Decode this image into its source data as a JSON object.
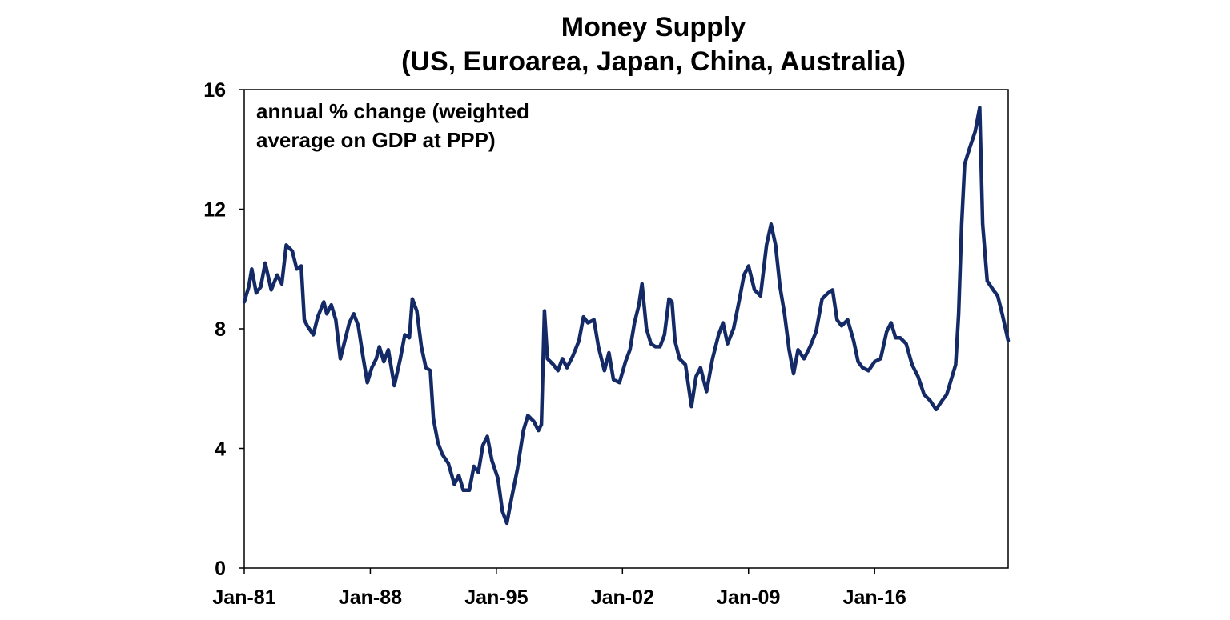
{
  "chart_data": {
    "type": "line",
    "title": "Money Supply",
    "subtitle": "(US, Euroarea, Japan, China, Australia)",
    "annotation": [
      "annual % change (weighted",
      "average on GDP at PPP)"
    ],
    "xlabel": "",
    "ylabel": "",
    "ylim": [
      0,
      16
    ],
    "yticks": [
      0,
      4,
      8,
      12,
      16
    ],
    "xlim": [
      "1981-01",
      "2023-06"
    ],
    "xticks": [
      {
        "date": "1981-01",
        "label": "Jan-81"
      },
      {
        "date": "1988-01",
        "label": "Jan-88"
      },
      {
        "date": "1995-01",
        "label": "Jan-95"
      },
      {
        "date": "2002-01",
        "label": "Jan-02"
      },
      {
        "date": "2009-01",
        "label": "Jan-09"
      },
      {
        "date": "2016-01",
        "label": "Jan-16"
      }
    ],
    "grid": false,
    "legend": "none",
    "series": [
      {
        "color": "#142a66",
        "points": [
          [
            "1981-01",
            8.9
          ],
          [
            "1981-04",
            9.4
          ],
          [
            "1981-06",
            10.0
          ],
          [
            "1981-09",
            9.2
          ],
          [
            "1981-12",
            9.4
          ],
          [
            "1982-03",
            10.2
          ],
          [
            "1982-07",
            9.3
          ],
          [
            "1982-11",
            9.8
          ],
          [
            "1983-02",
            9.5
          ],
          [
            "1983-05",
            10.8
          ],
          [
            "1983-09",
            10.6
          ],
          [
            "1983-12",
            10.0
          ],
          [
            "1984-03",
            10.1
          ],
          [
            "1984-05",
            8.3
          ],
          [
            "1984-07",
            8.1
          ],
          [
            "1984-11",
            7.8
          ],
          [
            "1985-02",
            8.4
          ],
          [
            "1985-06",
            8.9
          ],
          [
            "1985-08",
            8.5
          ],
          [
            "1985-11",
            8.8
          ],
          [
            "1986-02",
            8.3
          ],
          [
            "1986-05",
            7.0
          ],
          [
            "1986-08",
            7.6
          ],
          [
            "1986-11",
            8.2
          ],
          [
            "1987-02",
            8.5
          ],
          [
            "1987-05",
            8.1
          ],
          [
            "1987-08",
            7.1
          ],
          [
            "1987-11",
            6.2
          ],
          [
            "1988-02",
            6.7
          ],
          [
            "1988-05",
            7.0
          ],
          [
            "1988-07",
            7.4
          ],
          [
            "1988-10",
            6.9
          ],
          [
            "1989-01",
            7.3
          ],
          [
            "1989-05",
            6.1
          ],
          [
            "1989-09",
            7.0
          ],
          [
            "1989-12",
            7.8
          ],
          [
            "1990-03",
            7.7
          ],
          [
            "1990-05",
            9.0
          ],
          [
            "1990-08",
            8.6
          ],
          [
            "1990-11",
            7.4
          ],
          [
            "1991-02",
            6.7
          ],
          [
            "1991-05",
            6.6
          ],
          [
            "1991-07",
            5.0
          ],
          [
            "1991-10",
            4.2
          ],
          [
            "1992-01",
            3.8
          ],
          [
            "1992-05",
            3.5
          ],
          [
            "1992-09",
            2.8
          ],
          [
            "1992-12",
            3.1
          ],
          [
            "1993-03",
            2.6
          ],
          [
            "1993-07",
            2.6
          ],
          [
            "1993-10",
            3.4
          ],
          [
            "1994-01",
            3.2
          ],
          [
            "1994-04",
            4.1
          ],
          [
            "1994-07",
            4.4
          ],
          [
            "1994-10",
            3.6
          ],
          [
            "1995-02",
            3.0
          ],
          [
            "1995-05",
            1.9
          ],
          [
            "1995-08",
            1.5
          ],
          [
            "1995-11",
            2.3
          ],
          [
            "1996-03",
            3.3
          ],
          [
            "1996-07",
            4.6
          ],
          [
            "1996-10",
            5.1
          ],
          [
            "1997-02",
            4.9
          ],
          [
            "1997-05",
            4.6
          ],
          [
            "1997-07",
            4.8
          ],
          [
            "1997-09",
            8.6
          ],
          [
            "1997-11",
            7.0
          ],
          [
            "1998-03",
            6.8
          ],
          [
            "1998-06",
            6.6
          ],
          [
            "1998-09",
            7.0
          ],
          [
            "1998-12",
            6.7
          ],
          [
            "1999-04",
            7.1
          ],
          [
            "1999-08",
            7.6
          ],
          [
            "1999-11",
            8.4
          ],
          [
            "2000-02",
            8.2
          ],
          [
            "2000-06",
            8.3
          ],
          [
            "2000-09",
            7.4
          ],
          [
            "2001-01",
            6.6
          ],
          [
            "2001-04",
            7.2
          ],
          [
            "2001-07",
            6.3
          ],
          [
            "2001-11",
            6.2
          ],
          [
            "2002-03",
            6.9
          ],
          [
            "2002-06",
            7.3
          ],
          [
            "2002-09",
            8.2
          ],
          [
            "2002-12",
            8.8
          ],
          [
            "2003-02",
            9.5
          ],
          [
            "2003-05",
            8.0
          ],
          [
            "2003-08",
            7.5
          ],
          [
            "2003-11",
            7.4
          ],
          [
            "2004-02",
            7.4
          ],
          [
            "2004-05",
            7.8
          ],
          [
            "2004-08",
            9.0
          ],
          [
            "2004-10",
            8.9
          ],
          [
            "2004-12",
            7.6
          ],
          [
            "2005-03",
            7.0
          ],
          [
            "2005-07",
            6.8
          ],
          [
            "2005-11",
            5.4
          ],
          [
            "2006-02",
            6.4
          ],
          [
            "2006-05",
            6.7
          ],
          [
            "2006-09",
            5.9
          ],
          [
            "2007-01",
            7.0
          ],
          [
            "2007-05",
            7.8
          ],
          [
            "2007-08",
            8.2
          ],
          [
            "2007-11",
            7.5
          ],
          [
            "2008-03",
            8.0
          ],
          [
            "2008-07",
            9.0
          ],
          [
            "2008-10",
            9.8
          ],
          [
            "2009-01",
            10.1
          ],
          [
            "2009-05",
            9.3
          ],
          [
            "2009-09",
            9.1
          ],
          [
            "2010-01",
            10.8
          ],
          [
            "2010-04",
            11.5
          ],
          [
            "2010-07",
            10.8
          ],
          [
            "2010-10",
            9.4
          ],
          [
            "2011-01",
            8.5
          ],
          [
            "2011-04",
            7.3
          ],
          [
            "2011-07",
            6.5
          ],
          [
            "2011-10",
            7.3
          ],
          [
            "2012-02",
            7.0
          ],
          [
            "2012-06",
            7.4
          ],
          [
            "2012-10",
            7.9
          ],
          [
            "2013-02",
            9.0
          ],
          [
            "2013-06",
            9.2
          ],
          [
            "2013-09",
            9.3
          ],
          [
            "2013-12",
            8.3
          ],
          [
            "2014-03",
            8.1
          ],
          [
            "2014-07",
            8.3
          ],
          [
            "2014-11",
            7.6
          ],
          [
            "2015-02",
            6.9
          ],
          [
            "2015-05",
            6.7
          ],
          [
            "2015-09",
            6.6
          ],
          [
            "2016-01",
            6.9
          ],
          [
            "2016-05",
            7.0
          ],
          [
            "2016-09",
            7.9
          ],
          [
            "2016-12",
            8.2
          ],
          [
            "2017-03",
            7.7
          ],
          [
            "2017-06",
            7.7
          ],
          [
            "2017-10",
            7.5
          ],
          [
            "2018-02",
            6.8
          ],
          [
            "2018-06",
            6.4
          ],
          [
            "2018-10",
            5.8
          ],
          [
            "2019-02",
            5.6
          ],
          [
            "2019-06",
            5.3
          ],
          [
            "2019-10",
            5.6
          ],
          [
            "2020-01",
            5.8
          ],
          [
            "2020-04",
            6.3
          ],
          [
            "2020-07",
            6.8
          ],
          [
            "2020-09",
            8.5
          ],
          [
            "2020-11",
            11.5
          ],
          [
            "2021-01",
            13.5
          ],
          [
            "2021-04",
            14.0
          ],
          [
            "2021-08",
            14.6
          ],
          [
            "2021-11",
            15.4
          ],
          [
            "2022-01",
            11.5
          ],
          [
            "2022-04",
            9.6
          ],
          [
            "2022-08",
            9.3
          ],
          [
            "2022-11",
            9.1
          ],
          [
            "2023-02",
            8.5
          ],
          [
            "2023-06",
            7.6
          ]
        ]
      }
    ]
  }
}
